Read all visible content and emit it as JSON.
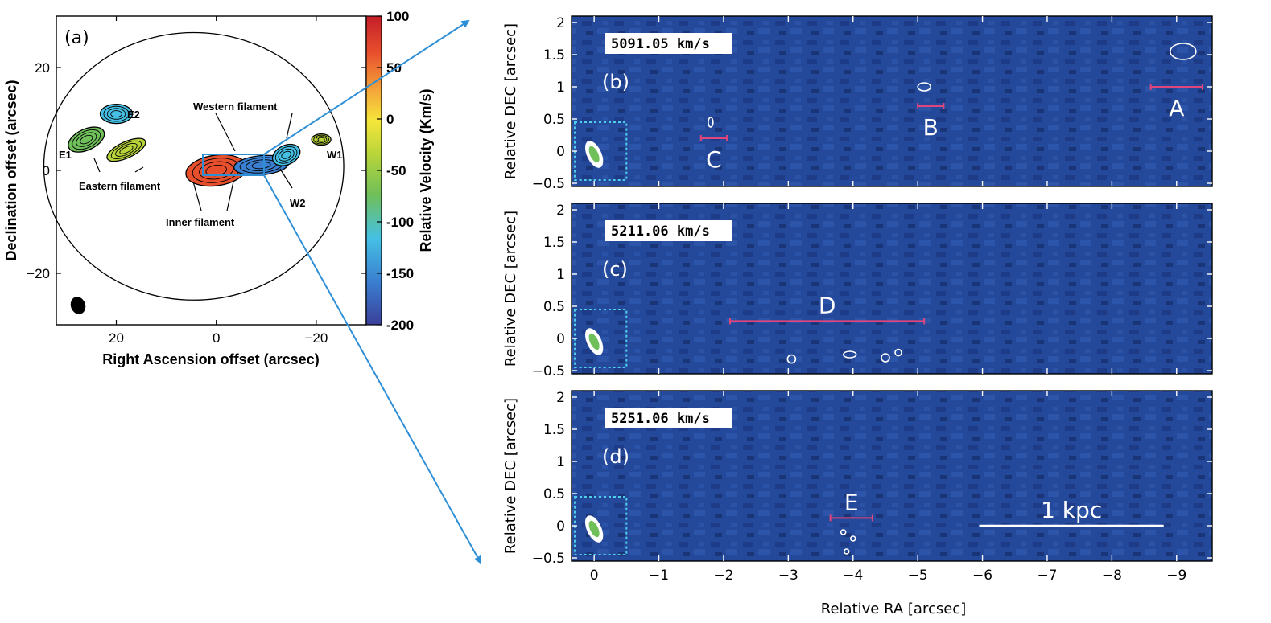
{
  "chart_data": [
    {
      "type": "heatmap",
      "panel": "(a)",
      "xlabel": "Right Ascension offset (arcsec)",
      "ylabel": "Declination offset (arcsec)",
      "xlim": [
        32,
        -30
      ],
      "ylim": [
        -30,
        30
      ],
      "xticks": [
        20,
        0,
        -20
      ],
      "yticks": [
        20,
        0,
        -20
      ],
      "tick_labels": {
        "x": [
          "20",
          "0",
          "−20"
        ],
        "y": [
          "20",
          "0",
          "−20"
        ]
      },
      "colorbar": {
        "label": "Relative Velocity (Km/s)",
        "range": [
          -200,
          100
        ],
        "ticks": [
          100,
          50,
          0,
          -50,
          -100,
          -150,
          -200
        ],
        "tick_labels": [
          "100",
          "50",
          "0",
          "-50",
          "-100",
          "-150",
          "-200"
        ],
        "stops": [
          "#3b3f9a",
          "#3a7fd0",
          "#45c0e4",
          "#6fbf5a",
          "#b7d43a",
          "#f5e63a",
          "#f4a53a",
          "#e8502d",
          "#c41e28"
        ]
      },
      "field_circle": {
        "center_ra": 4.5,
        "center_dec": 0.8,
        "radius_ra": 30,
        "radius_dec": 26
      },
      "regions": [
        {
          "name": "E1",
          "ra": 26,
          "dec": 6,
          "velocity": -90
        },
        {
          "name": "E2",
          "ra": 20,
          "dec": 11,
          "velocity": -110
        },
        {
          "name": "Eastern filament",
          "ra": 18,
          "dec": 4,
          "velocity": -60
        },
        {
          "name": "Inner filament",
          "ra": 0,
          "dec": 0,
          "velocity": 45
        },
        {
          "name": "Western filament",
          "ra": -9,
          "dec": 1,
          "velocity": -165
        },
        {
          "name": "W1",
          "ra": -21,
          "dec": 6,
          "velocity": -40
        },
        {
          "name": "W2",
          "ra": -14,
          "dec": 3,
          "velocity": -110
        }
      ],
      "annotations": [
        "E1",
        "E2",
        "Eastern filament",
        "Western filament",
        "Inner filament",
        "W1",
        "W2"
      ]
    },
    {
      "type": "heatmap",
      "panels": [
        {
          "label": "(b)",
          "velocity": "5091.05 km/s",
          "features": [
            {
              "name": "A",
              "ra_range": [
                -8.6,
                -9.4
              ],
              "dec": 1.0
            },
            {
              "name": "B",
              "ra_range": [
                -5.0,
                -5.4
              ],
              "dec": 0.7
            },
            {
              "name": "C",
              "ra_range": [
                -1.65,
                -2.05
              ],
              "dec": 0.2
            }
          ]
        },
        {
          "label": "(c)",
          "velocity": "5211.06 km/s",
          "features": [
            {
              "name": "D",
              "ra_range": [
                -2.1,
                -5.1
              ],
              "dec": 0.27
            }
          ]
        },
        {
          "label": "(d)",
          "velocity": "5251.06 km/s",
          "features": [
            {
              "name": "E",
              "ra_range": [
                -3.65,
                -4.3
              ],
              "dec": 0.12
            }
          ],
          "scalebar": {
            "label": "1 kpc",
            "ra_range": [
              -5.95,
              -8.8
            ],
            "dec": 0.0
          }
        }
      ],
      "xlabel": "Relative RA [arcsec]",
      "ylabel": "Relative DEC [arcsec]",
      "xlim": [
        0.35,
        -9.55
      ],
      "ylim": [
        -0.55,
        2.1
      ],
      "xticks": [
        0,
        -1,
        -2,
        -3,
        -4,
        -5,
        -6,
        -7,
        -8,
        -9
      ],
      "yticks": [
        2,
        1.5,
        1,
        0.5,
        0,
        -0.5
      ],
      "tick_labels": {
        "x": [
          "0",
          "−1",
          "−2",
          "−3",
          "−4",
          "−5",
          "−6",
          "−7",
          "−8",
          "−9"
        ],
        "y": [
          "2",
          "1.5",
          "1",
          "0.5",
          "0",
          "−0.5"
        ]
      }
    }
  ],
  "colors": {
    "panel_bg": "#24489a",
    "panel_bg_dark": "#1b3680",
    "feature_bar": "#e0457b",
    "arrow": "#2f8fd6",
    "inset_box": "#4fd0e8"
  }
}
